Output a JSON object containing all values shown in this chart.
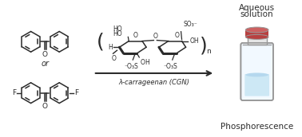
{
  "bg_color": "#ffffff",
  "title_top": "Aqueous",
  "title_top2": "solution",
  "title_bottom": "Phosphorescence",
  "arrow_label": "λ-carrageenan (CGN)",
  "or_text": "or",
  "fig_width": 3.78,
  "fig_height": 1.72,
  "dpi": 100,
  "text_color": "#2b2b2b",
  "line_color": "#2b2b2b"
}
